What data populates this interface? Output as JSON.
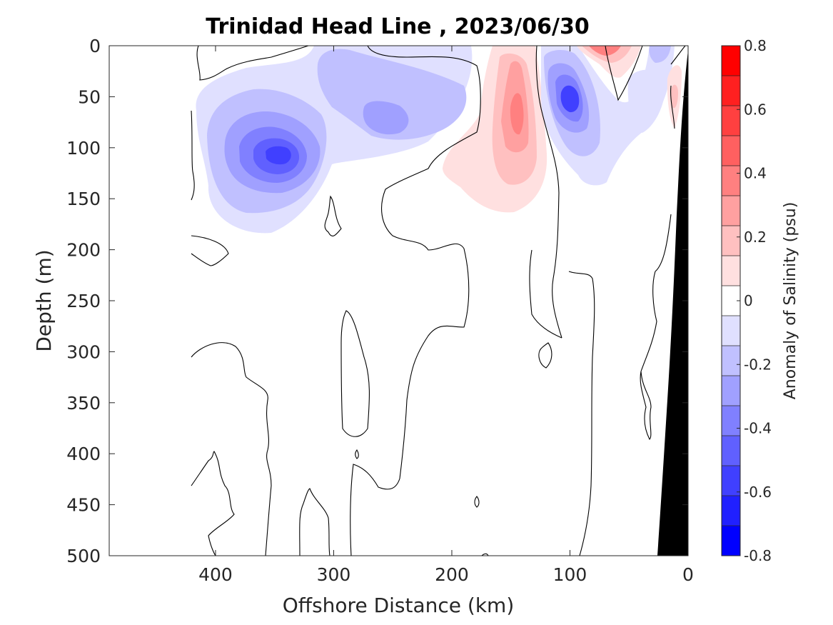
{
  "chart_data": {
    "type": "contour",
    "title": "Trinidad Head Line , 2023/06/30",
    "xlabel": "Offshore Distance (km)",
    "ylabel": "Depth (m)",
    "xlim": [
      490,
      0
    ],
    "ylim": [
      0,
      500
    ],
    "x_reversed": true,
    "y_reversed": true,
    "xticks": [
      400,
      300,
      200,
      100,
      0
    ],
    "yticks": [
      0,
      50,
      100,
      150,
      200,
      250,
      300,
      350,
      400,
      450,
      500
    ],
    "colorbar": {
      "label": "Anomaly of Salinity (psu)",
      "range": [
        -0.8,
        0.8
      ],
      "ticks": [
        "-0.8",
        "-0.6",
        "-0.4",
        "-0.2",
        "0",
        "0.2",
        "0.4",
        "0.6",
        "0.8"
      ],
      "levels": [
        -0.8,
        -0.7,
        -0.6,
        -0.5,
        -0.4,
        -0.3,
        -0.2,
        -0.1,
        0.1,
        0.2,
        0.3,
        0.4,
        0.5,
        0.6,
        0.7,
        0.8
      ],
      "colors": [
        "#0000ff",
        "#2020ff",
        "#4040ff",
        "#6060ff",
        "#8080ff",
        "#a0a0ff",
        "#c0c0ff",
        "#e0e0ff",
        "#ffffff",
        "#ffe0e0",
        "#ffc0c0",
        "#ffa0a0",
        "#ff8080",
        "#ff6060",
        "#ff4040",
        "#ff2020",
        "#ff0000"
      ]
    },
    "features": [
      {
        "name": "negative-anomaly-core",
        "x": 345,
        "y": 105,
        "value": -0.6
      },
      {
        "name": "negative-anomaly-mid",
        "x": 255,
        "y": 70,
        "value": -0.3
      },
      {
        "name": "positive-anomaly-core",
        "x": 145,
        "y": 60,
        "value": 0.4
      },
      {
        "name": "negative-anomaly-nearshore",
        "x": 100,
        "y": 50,
        "value": -0.5
      },
      {
        "name": "positive-anomaly-surface",
        "x": 70,
        "y": 5,
        "value": 0.5
      },
      {
        "name": "positive-anomaly-coast",
        "x": 12,
        "y": 50,
        "value": 0.3
      }
    ],
    "seafloor_color": "#000000"
  }
}
